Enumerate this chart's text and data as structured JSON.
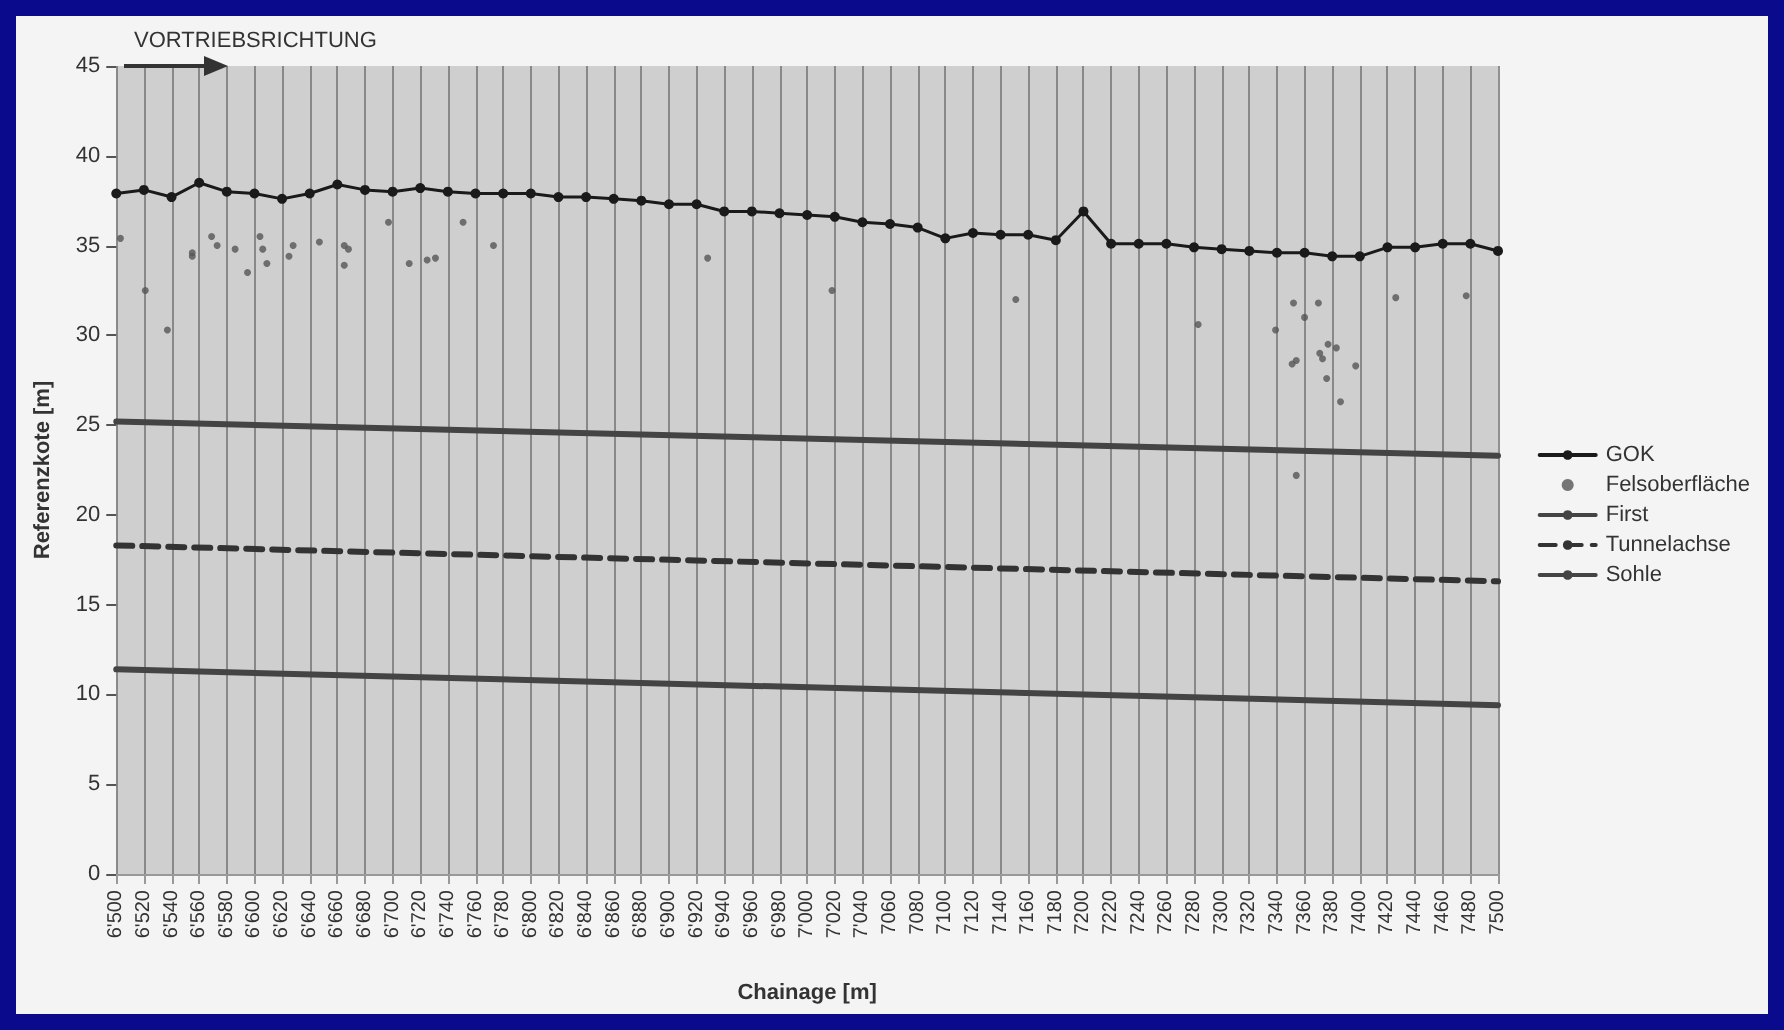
{
  "chart_data": {
    "type": "line",
    "xlabel": "Chainage [m]",
    "ylabel": "Referenzkote [m]",
    "annotations": [
      "VORTRIEBSRICHTUNG"
    ],
    "xlim": [
      6500,
      7500
    ],
    "ylim": [
      0,
      45
    ],
    "yticks": [
      0,
      5,
      10,
      15,
      20,
      25,
      30,
      35,
      40,
      45
    ],
    "xticks": [
      {
        "value": 6500,
        "label": "6'500"
      },
      {
        "value": 6520,
        "label": "6'520"
      },
      {
        "value": 6540,
        "label": "6'540"
      },
      {
        "value": 6560,
        "label": "6'560"
      },
      {
        "value": 6580,
        "label": "6'580"
      },
      {
        "value": 6600,
        "label": "6'600"
      },
      {
        "value": 6620,
        "label": "6'620"
      },
      {
        "value": 6640,
        "label": "6'640"
      },
      {
        "value": 6660,
        "label": "6'660"
      },
      {
        "value": 6680,
        "label": "6'680"
      },
      {
        "value": 6700,
        "label": "6'700"
      },
      {
        "value": 6720,
        "label": "6'720"
      },
      {
        "value": 6740,
        "label": "6'740"
      },
      {
        "value": 6760,
        "label": "6'760"
      },
      {
        "value": 6780,
        "label": "6'780"
      },
      {
        "value": 6800,
        "label": "6'800"
      },
      {
        "value": 6820,
        "label": "6'820"
      },
      {
        "value": 6840,
        "label": "6'840"
      },
      {
        "value": 6860,
        "label": "6'860"
      },
      {
        "value": 6880,
        "label": "6'880"
      },
      {
        "value": 6900,
        "label": "6'900"
      },
      {
        "value": 6920,
        "label": "6'920"
      },
      {
        "value": 6940,
        "label": "6'940"
      },
      {
        "value": 6960,
        "label": "6'960"
      },
      {
        "value": 6980,
        "label": "6'980"
      },
      {
        "value": 7000,
        "label": "7'000"
      },
      {
        "value": 7020,
        "label": "7'020"
      },
      {
        "value": 7040,
        "label": "7'040"
      },
      7060,
      7080,
      7100,
      7120,
      7140,
      7160,
      7180,
      7200,
      7220,
      7240,
      7260,
      7280,
      7300,
      7320,
      7340,
      7360,
      7380,
      7400,
      7420,
      7440,
      7460,
      7480,
      7500
    ],
    "grid": "x",
    "legend": "right",
    "series": [
      {
        "name": "GOK",
        "marker": "circle",
        "color": "#1a1a1a",
        "x": [
          6500,
          6520,
          6540,
          6560,
          6580,
          6600,
          6620,
          6640,
          6660,
          6680,
          6700,
          6720,
          6740,
          6760,
          6780,
          6800,
          6820,
          6840,
          6860,
          6880,
          6900,
          6920,
          6940,
          6960,
          6980,
          7000,
          7020,
          7040,
          7060,
          7080,
          7100,
          7120,
          7140,
          7160,
          7180,
          7200,
          7220,
          7240,
          7260,
          7280,
          7300,
          7320,
          7340,
          7360,
          7380,
          7400,
          7420,
          7440,
          7460,
          7480,
          7500
        ],
        "values": [
          37.9,
          38.1,
          37.7,
          38.5,
          38.0,
          37.9,
          37.6,
          37.9,
          38.4,
          38.1,
          38.0,
          38.2,
          38.0,
          37.9,
          37.9,
          37.9,
          37.7,
          37.7,
          37.6,
          37.5,
          37.3,
          37.3,
          36.9,
          36.9,
          36.8,
          36.7,
          36.6,
          36.3,
          36.2,
          36.0,
          35.4,
          35.7,
          35.6,
          35.6,
          35.3,
          36.9,
          35.1,
          35.1,
          35.1,
          34.9,
          34.8,
          34.7,
          34.6,
          34.6,
          34.4,
          34.4,
          34.9,
          34.9,
          35.1,
          35.1,
          34.7
        ]
      },
      {
        "name": "Felsoberfläche",
        "type": "scatter",
        "marker": "circle",
        "color": "#555555",
        "x": [
          6503,
          6521,
          6537,
          6555,
          6555,
          6569,
          6573,
          6586,
          6595,
          6604,
          6606,
          6609,
          6625,
          6628,
          6647,
          6665,
          6668,
          6665,
          6697,
          6712,
          6725,
          6731,
          6751,
          6773,
          6928,
          7018,
          7151,
          7283,
          7339,
          7352,
          7370,
          7360,
          7351,
          7354,
          7371,
          7373,
          7377,
          7383,
          7376,
          7386,
          7397,
          7354,
          7426,
          7477
        ],
        "values": [
          35.4,
          32.5,
          30.3,
          34.6,
          34.4,
          35.5,
          35.0,
          34.8,
          33.5,
          35.5,
          34.8,
          34.0,
          34.4,
          35.0,
          35.2,
          35.0,
          34.8,
          33.9,
          36.3,
          34.0,
          34.2,
          34.3,
          36.3,
          35.0,
          34.3,
          32.5,
          32.0,
          30.6,
          30.3,
          31.8,
          31.8,
          31.0,
          28.4,
          28.6,
          29.0,
          28.7,
          29.5,
          29.3,
          27.6,
          26.3,
          28.3,
          22.2,
          32.1,
          32.2
        ]
      },
      {
        "name": "First",
        "marker": "none",
        "line_style": "solid",
        "color": "#444444",
        "x": [
          6500,
          7500
        ],
        "values": [
          25.2,
          23.3
        ]
      },
      {
        "name": "Tunnelachse",
        "marker": "none",
        "line_style": "dashed",
        "color": "#333333",
        "x": [
          6500,
          7500
        ],
        "values": [
          18.3,
          16.3
        ]
      },
      {
        "name": "Sohle",
        "marker": "none",
        "line_style": "solid",
        "color": "#444444",
        "x": [
          6500,
          7500
        ],
        "values": [
          11.4,
          9.4
        ]
      }
    ]
  }
}
